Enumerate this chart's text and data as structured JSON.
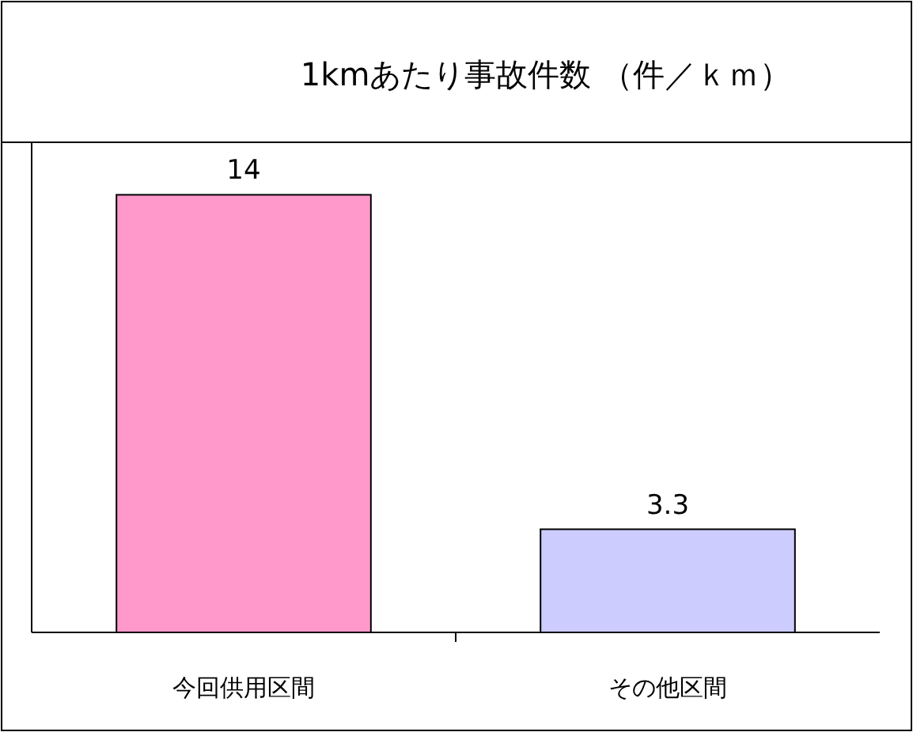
{
  "chart_data": {
    "type": "bar",
    "title": "1kmあたり事故件数 （件／ｋｍ）",
    "categories": [
      "今回供用区間",
      "その他区間"
    ],
    "values": [
      14,
      3.3
    ],
    "colors": [
      "#ff99cc",
      "#ccccff"
    ],
    "data_labels": true,
    "tick_labels": "x"
  }
}
